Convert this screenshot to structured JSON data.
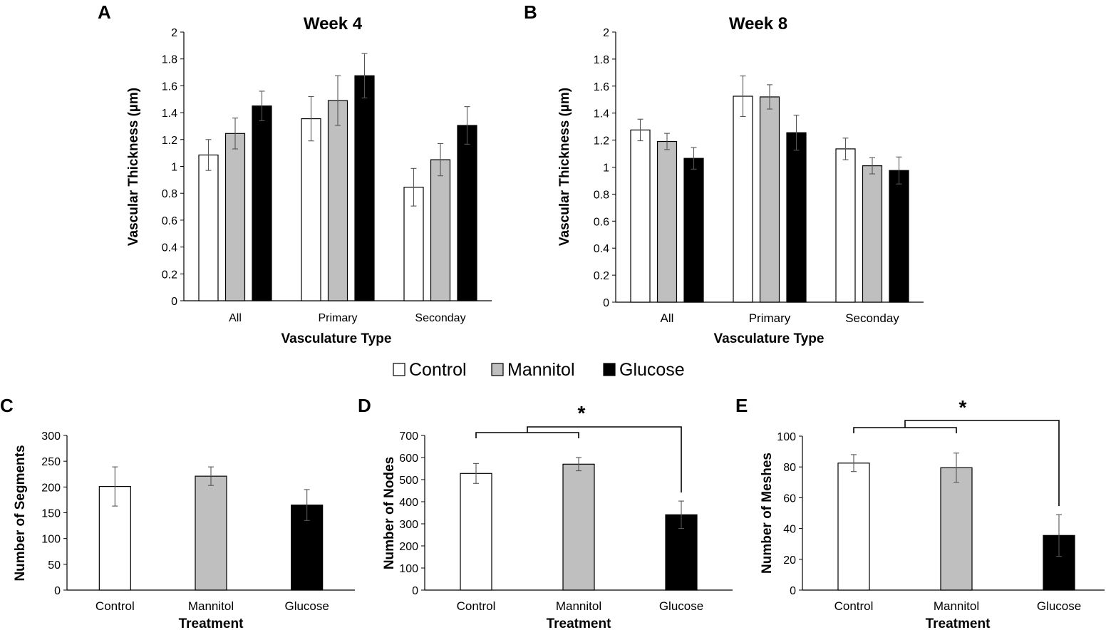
{
  "legend": {
    "entries": [
      {
        "label": "Control",
        "color": "#ffffff"
      },
      {
        "label": "Mannitol",
        "color": "#bfbfbf"
      },
      {
        "label": "Glucose",
        "color": "#000000"
      }
    ]
  },
  "chart_data": [
    {
      "id": "A",
      "panel_label": "A",
      "type": "bar",
      "title": "Week 4",
      "xlabel": "Vasculature Type",
      "ylabel": "Vascular Thickness (µm)",
      "ylim": [
        0,
        2
      ],
      "yticks": [
        "0",
        "0.2",
        "0.4",
        "0.6",
        "0.8",
        "1",
        "1.2",
        "1.4",
        "1.6",
        "1.8",
        "2"
      ],
      "categories": [
        "All",
        "Primary",
        "Seconday"
      ],
      "series": [
        {
          "name": "Control",
          "color": "#ffffff",
          "values": [
            1.085,
            1.355,
            0.845
          ],
          "errors": [
            0.115,
            0.165,
            0.14
          ]
        },
        {
          "name": "Mannitol",
          "color": "#bfbfbf",
          "values": [
            1.245,
            1.49,
            1.05
          ],
          "errors": [
            0.115,
            0.185,
            0.12
          ]
        },
        {
          "name": "Glucose",
          "color": "#000000",
          "values": [
            1.45,
            1.675,
            1.305
          ],
          "errors": [
            0.11,
            0.165,
            0.14
          ]
        }
      ]
    },
    {
      "id": "B",
      "panel_label": "B",
      "type": "bar",
      "title": "Week 8",
      "xlabel": "Vasculature Type",
      "ylabel": "Vascular Thickness (µm)",
      "ylim": [
        0,
        2
      ],
      "yticks": [
        "0",
        "0.2",
        "0.4",
        "0.6",
        "0.8",
        "1",
        "1.2",
        "1.4",
        "1.6",
        "1.8",
        "2"
      ],
      "categories": [
        "All",
        "Primary",
        "Seconday"
      ],
      "series": [
        {
          "name": "Control",
          "color": "#ffffff",
          "values": [
            1.275,
            1.525,
            1.135
          ],
          "errors": [
            0.08,
            0.15,
            0.08
          ]
        },
        {
          "name": "Mannitol",
          "color": "#bfbfbf",
          "values": [
            1.19,
            1.52,
            1.01
          ],
          "errors": [
            0.06,
            0.09,
            0.06
          ]
        },
        {
          "name": "Glucose",
          "color": "#000000",
          "values": [
            1.065,
            1.255,
            0.975
          ],
          "errors": [
            0.08,
            0.13,
            0.1
          ]
        }
      ]
    },
    {
      "id": "C",
      "panel_label": "C",
      "type": "bar",
      "title": "",
      "xlabel": "Treatment",
      "ylabel": "Number of Segments",
      "ylim": [
        0,
        300
      ],
      "yticks": [
        "0",
        "50",
        "100",
        "150",
        "200",
        "250",
        "300"
      ],
      "categories": [
        "Control",
        "Mannitol",
        "Glucose"
      ],
      "colors": [
        "#ffffff",
        "#bfbfbf",
        "#000000"
      ],
      "values": [
        201,
        221,
        165
      ],
      "errors": [
        38,
        18,
        30
      ]
    },
    {
      "id": "D",
      "panel_label": "D",
      "type": "bar",
      "title": "",
      "xlabel": "Treatment",
      "ylabel": "Number of Nodes",
      "ylim": [
        0,
        700
      ],
      "yticks": [
        "0",
        "100",
        "200",
        "300",
        "400",
        "500",
        "600",
        "700"
      ],
      "categories": [
        "Control",
        "Mannitol",
        "Glucose"
      ],
      "colors": [
        "#ffffff",
        "#bfbfbf",
        "#000000"
      ],
      "values": [
        528,
        570,
        341
      ],
      "errors": [
        45,
        30,
        62
      ],
      "significance": "*"
    },
    {
      "id": "E",
      "panel_label": "E",
      "type": "bar",
      "title": "",
      "xlabel": "Treatment",
      "ylabel": "Number of Meshes",
      "ylim": [
        0,
        100
      ],
      "yticks": [
        "0",
        "20",
        "40",
        "60",
        "80",
        "100"
      ],
      "categories": [
        "Control",
        "Mannitol",
        "Glucose"
      ],
      "colors": [
        "#ffffff",
        "#bfbfbf",
        "#000000"
      ],
      "values": [
        82.5,
        79.5,
        35.5
      ],
      "errors": [
        5.5,
        9.5,
        13.5
      ],
      "significance": "*"
    }
  ]
}
